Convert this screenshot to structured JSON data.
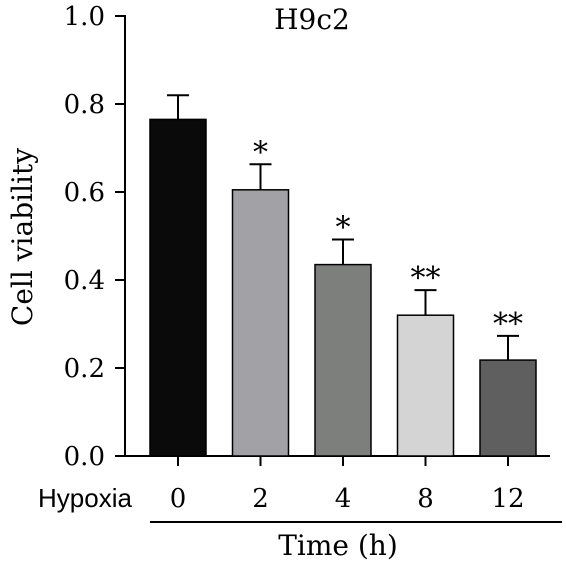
{
  "chart_data": {
    "type": "bar",
    "title": "H9c2",
    "ylabel": "Cell viability",
    "xlabel": "Time (h)",
    "row_label": "Hypoxia",
    "categories": [
      "0",
      "2",
      "4",
      "8",
      "12"
    ],
    "values": [
      0.765,
      0.605,
      0.435,
      0.32,
      0.218
    ],
    "errors": [
      0.055,
      0.058,
      0.057,
      0.057,
      0.055
    ],
    "significance": [
      "",
      "*",
      "*",
      "**",
      "**"
    ],
    "colors": [
      "#0a0a0a",
      "#a2a2a6",
      "#7d7f7d",
      "#d4d4d4",
      "#5f5f5f"
    ],
    "ylim": [
      0,
      1.0
    ],
    "yticks": [
      "0.0",
      "0.2",
      "0.4",
      "0.6",
      "0.8",
      "1.0"
    ],
    "grid": false,
    "legend": "none"
  }
}
